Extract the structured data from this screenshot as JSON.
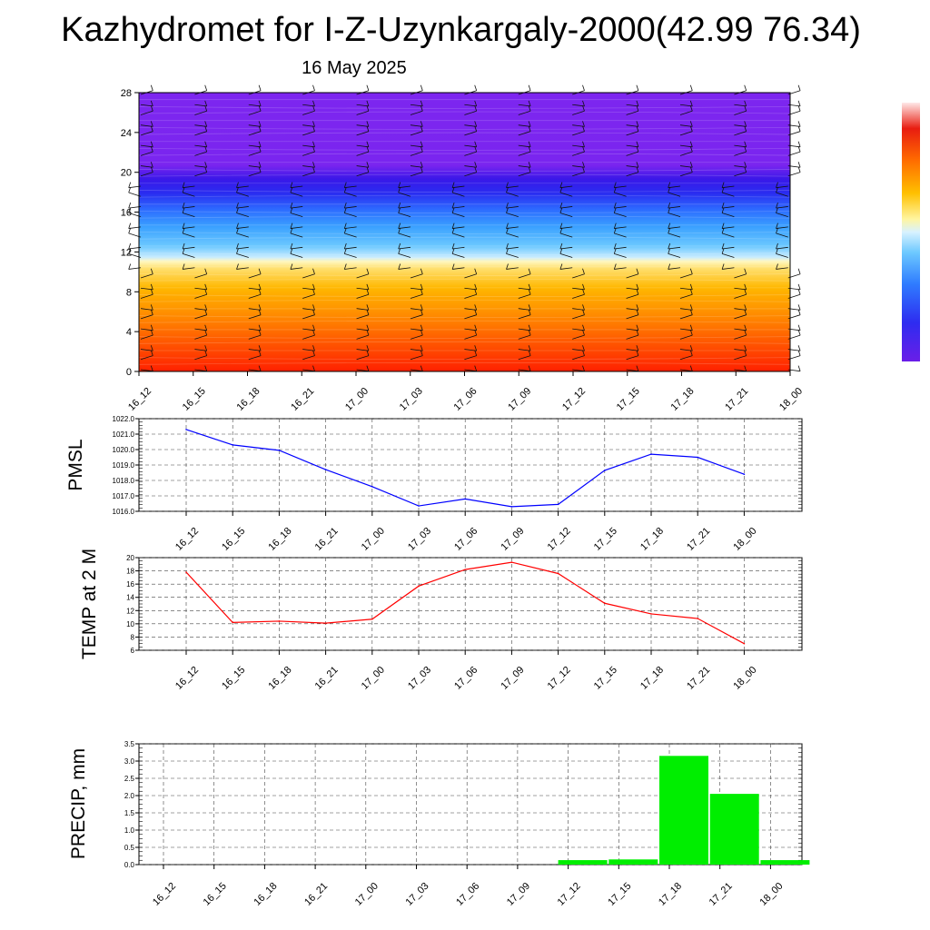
{
  "title": "Kazhydromet for I-Z-Uzynkargaly-2000(42.99 76.34)",
  "date": "16 May 2025",
  "time_labels": [
    "16_12",
    "16_15",
    "16_18",
    "16_21",
    "17_00",
    "17_03",
    "17_06",
    "17_09",
    "17_12",
    "17_15",
    "17_18",
    "17_21",
    "18_00"
  ],
  "colors": {
    "pmsl_line": "#0000ff",
    "temp_line": "#ff0000",
    "precip_bar": "#00ee00"
  },
  "chart_data": [
    {
      "type": "heatmap",
      "title": "",
      "xlabel": "",
      "ylabel": "",
      "ylim": [
        0,
        28
      ],
      "yticks": [
        0,
        4,
        8,
        12,
        16,
        20,
        24,
        28
      ],
      "categories": [
        "16_12",
        "16_15",
        "16_18",
        "16_21",
        "17_00",
        "17_03",
        "17_06",
        "17_09",
        "17_12",
        "17_15",
        "17_18",
        "17_21",
        "18_00"
      ],
      "overlay": "wind barbs",
      "colorbar": "vertical, right, no labels"
    },
    {
      "type": "line",
      "ylabel": "PMSL",
      "ylim": [
        1016.0,
        1022.0
      ],
      "yticks": [
        "1016.0",
        "1017.0",
        "1018.0",
        "1019.0",
        "1020.0",
        "1021.0",
        "1022.0"
      ],
      "categories": [
        "16_12",
        "16_15",
        "16_18",
        "16_21",
        "17_00",
        "17_03",
        "17_06",
        "17_09",
        "17_12",
        "17_15",
        "17_18",
        "17_21",
        "18_00"
      ],
      "values": [
        1021.3,
        1020.3,
        1019.95,
        1018.7,
        1017.6,
        1016.35,
        1016.8,
        1016.3,
        1016.45,
        1018.65,
        1019.7,
        1019.5,
        1018.4
      ],
      "grid": true
    },
    {
      "type": "line",
      "ylabel": "TEMP at 2 M",
      "ylim": [
        6,
        20
      ],
      "yticks": [
        "6",
        "8",
        "10",
        "12",
        "14",
        "16",
        "18",
        "20"
      ],
      "categories": [
        "16_12",
        "16_15",
        "16_18",
        "16_21",
        "17_00",
        "17_03",
        "17_06",
        "17_09",
        "17_12",
        "17_15",
        "17_18",
        "17_21",
        "18_00"
      ],
      "values": [
        17.8,
        10.2,
        10.4,
        10.1,
        10.7,
        15.7,
        18.2,
        19.3,
        17.6,
        13.1,
        11.5,
        10.8,
        7.0
      ],
      "grid": true
    },
    {
      "type": "bar",
      "ylabel": "PRECIP, mm",
      "ylim": [
        0,
        3.5
      ],
      "yticks": [
        "0.0",
        "0.5",
        "1.0",
        "1.5",
        "2.0",
        "2.5",
        "3.0",
        "3.5"
      ],
      "categories": [
        "16_12",
        "16_15",
        "16_18",
        "16_21",
        "17_00",
        "17_03",
        "17_06",
        "17_09",
        "17_12",
        "17_15",
        "17_18",
        "17_21",
        "18_00"
      ],
      "values": [
        0,
        0,
        0,
        0,
        0,
        0,
        0,
        0,
        0.13,
        0.15,
        3.15,
        2.05,
        0.13
      ],
      "grid": true
    }
  ]
}
